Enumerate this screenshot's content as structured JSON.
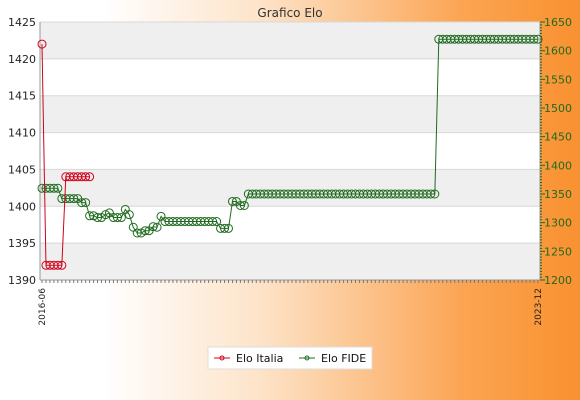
{
  "chart_data": {
    "type": "line",
    "title": "Grafico Elo",
    "legend_position": "bottom",
    "grid": true,
    "y_left_lim": [
      1390,
      1425
    ],
    "y_left_ticks": [
      "1390",
      "1395",
      "1400",
      "1405",
      "1410",
      "1415",
      "1420",
      "1425"
    ],
    "y_right_lim": [
      1200,
      1650
    ],
    "y_right_ticks": [
      "1200",
      "1250",
      "1300",
      "1350",
      "1400",
      "1450",
      "1500",
      "1550",
      "1600",
      "1650"
    ],
    "x_first_label": "2016-06",
    "x_last_label": "2023-12",
    "series": [
      {
        "name": "Elo Italia",
        "color": "#d0021b",
        "axis": "left",
        "values": [
          1422,
          1392,
          1392,
          1392,
          1392,
          1392,
          1404,
          1404,
          1404,
          1404,
          1404,
          1404,
          1404
        ]
      },
      {
        "name": "Elo FIDE",
        "color": "#1f6b1f",
        "axis": "right",
        "values": [
          1360,
          1360,
          1360,
          1360,
          1360,
          1342,
          1342,
          1342,
          1342,
          1342,
          1335,
          1335,
          1312,
          1312,
          1309,
          1309,
          1314,
          1317,
          1309,
          1309,
          1309,
          1323,
          1314,
          1292,
          1282,
          1282,
          1286,
          1286,
          1293,
          1292,
          1311,
          1302,
          1302,
          1302,
          1302,
          1302,
          1302,
          1302,
          1302,
          1302,
          1302,
          1302,
          1302,
          1302,
          1302,
          1290,
          1290,
          1290,
          1337,
          1337,
          1330,
          1330,
          1350,
          1350,
          1350,
          1350,
          1350,
          1350,
          1350,
          1350,
          1350,
          1350,
          1350,
          1350,
          1350,
          1350,
          1350,
          1350,
          1350,
          1350,
          1350,
          1350,
          1350,
          1350,
          1350,
          1350,
          1350,
          1350,
          1350,
          1350,
          1350,
          1350,
          1350,
          1350,
          1350,
          1350,
          1350,
          1350,
          1350,
          1350,
          1350,
          1350,
          1350,
          1350,
          1350,
          1350,
          1350,
          1350,
          1350,
          1350,
          1620,
          1620,
          1620,
          1620,
          1620,
          1620,
          1620,
          1620,
          1620,
          1620,
          1620,
          1620,
          1620,
          1620,
          1620,
          1620,
          1620,
          1620,
          1620,
          1620,
          1620,
          1620,
          1620,
          1620,
          1620,
          1620
        ]
      }
    ]
  }
}
